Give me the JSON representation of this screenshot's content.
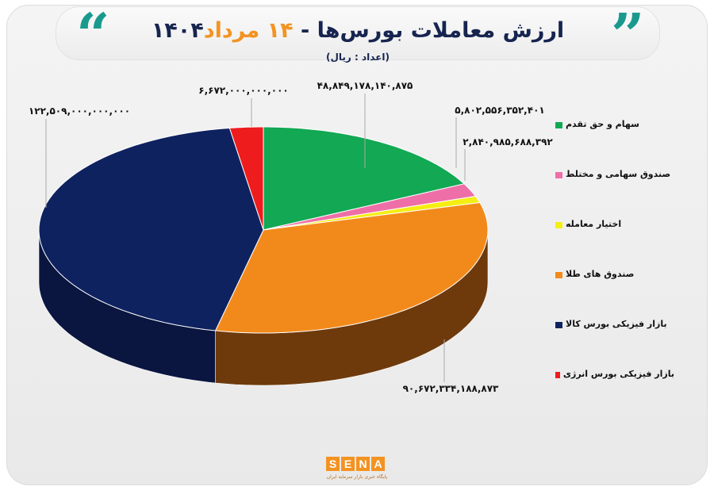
{
  "title": {
    "part1": "ارزش معاملات بورس‌ها - ",
    "highlight": "۱۴ مرداد",
    "part2": "۱۴۰۴",
    "subtitle": "(اعداد : ریال)"
  },
  "quotes": {
    "open": "“",
    "close": "”"
  },
  "logo": {
    "letters": [
      "S",
      "E",
      "N",
      "A"
    ],
    "tagline": "پایگاه خبری بازار سرمایه ایران"
  },
  "chart_data": {
    "type": "pie",
    "style": "3d",
    "unit": "ریال",
    "legend_position": "right",
    "slices": [
      {
        "name": "سهام و حق تقدم",
        "value": 48849178140875,
        "label": "۴۸,۸۴۹,۱۷۸,۱۴۰,۸۷۵",
        "color": "#12a854",
        "side": "#0b7a3c"
      },
      {
        "name": "صندوق سهامی و مختلط",
        "value": 5802556352401,
        "label": "۵,۸۰۲,۵۵۶,۳۵۲,۴۰۱",
        "color": "#ee6fa8",
        "side": "#b84f7f"
      },
      {
        "name": "اختیار معامله",
        "value": 2840985688392,
        "label": "۲,۸۴۰,۹۸۵,۶۸۸,۳۹۲",
        "color": "#f5ee13",
        "side": "#b8b20c"
      },
      {
        "name": "صندوق های طلا",
        "value": 90672334188873,
        "label": "۹۰,۶۷۲,۳۳۴,۱۸۸,۸۷۳",
        "color": "#f28a1b",
        "side": "#6e3a0c"
      },
      {
        "name": "بازار فیزیکی بورس کالا",
        "value": 122509000000000,
        "label": "۱۲۲,۵۰۹,۰۰۰,۰۰۰,۰۰۰",
        "color": "#0f2260",
        "side": "#0a1640"
      },
      {
        "name": "بازار فیزیکی بورس انرژی",
        "value": 6672000000000,
        "label": "۶,۶۷۲,۰۰۰,۰۰۰,۰۰۰",
        "color": "#ee1c1c",
        "side": "#a01010"
      }
    ]
  }
}
